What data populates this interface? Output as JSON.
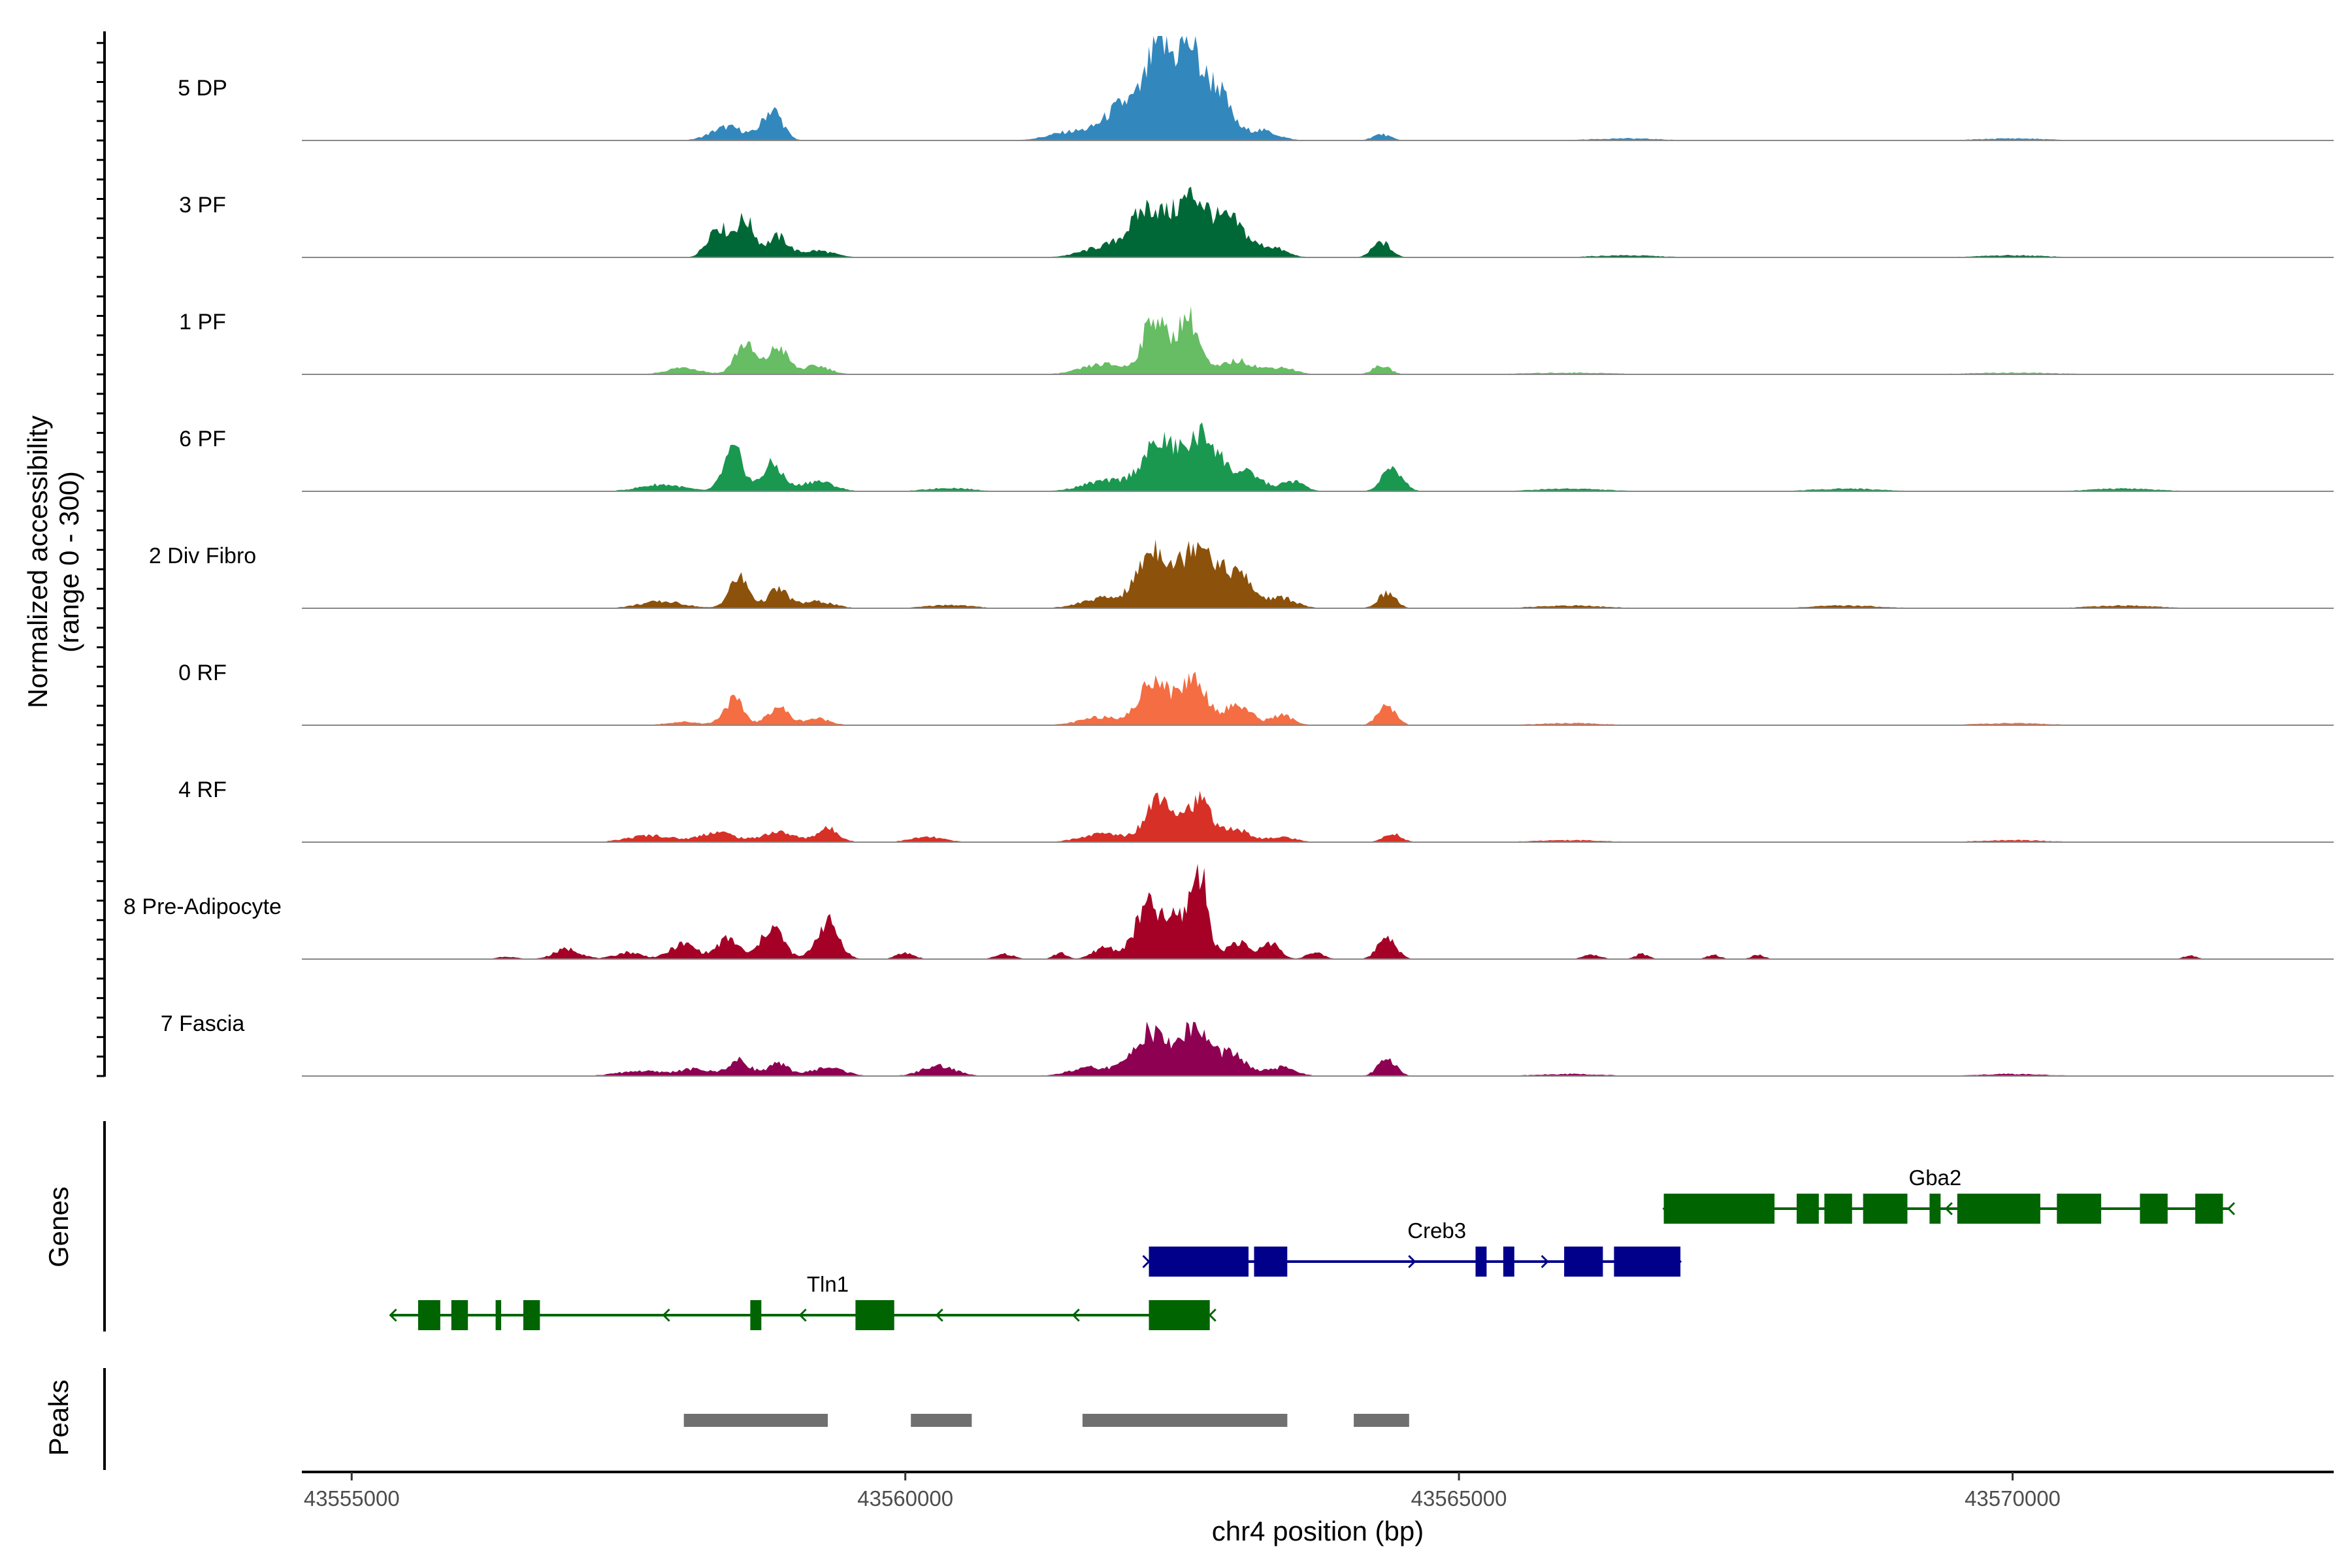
{
  "chart_data": {
    "type": "area",
    "title": "",
    "xlabel": "chr4 position (bp)",
    "ylabel_line1": "Normalized accessibility",
    "ylabel_line2": "(range 0 - 300)",
    "ylim": [
      0,
      300
    ],
    "xlim": [
      43554550,
      43572900
    ],
    "xticks": [
      {
        "value": 43555000,
        "label": "43555000"
      },
      {
        "value": 43560000,
        "label": "43560000"
      },
      {
        "value": 43565000,
        "label": "43565000"
      },
      {
        "value": 43570000,
        "label": "43570000"
      }
    ],
    "tracks": [
      {
        "name": "5 DP",
        "color": "#3288bd",
        "peaks": [
          [
            43555400,
            6,
            60
          ],
          [
            43558400,
            40,
            150
          ],
          [
            43558800,
            90,
            90
          ],
          [
            43561500,
            25,
            200
          ],
          [
            43562000,
            110,
            180
          ],
          [
            43562300,
            250,
            110
          ],
          [
            43562550,
            260,
            100
          ],
          [
            43562800,
            160,
            120
          ],
          [
            43563200,
            30,
            150
          ],
          [
            43564300,
            18,
            80
          ],
          [
            43566500,
            6,
            300
          ],
          [
            43570000,
            6,
            300
          ]
        ]
      },
      {
        "name": "3 PF",
        "color": "#006837",
        "peaks": [
          [
            43558300,
            90,
            90
          ],
          [
            43558550,
            110,
            90
          ],
          [
            43558850,
            60,
            90
          ],
          [
            43559200,
            20,
            150
          ],
          [
            43561800,
            30,
            200
          ],
          [
            43562200,
            140,
            160
          ],
          [
            43562600,
            175,
            150
          ],
          [
            43562950,
            100,
            130
          ],
          [
            43563300,
            30,
            130
          ],
          [
            43564300,
            45,
            80
          ],
          [
            43566500,
            6,
            300
          ],
          [
            43570000,
            6,
            300
          ]
        ]
      },
      {
        "name": "1 PF",
        "color": "#66bd63",
        "peaks": [
          [
            43558000,
            20,
            150
          ],
          [
            43558550,
            90,
            90
          ],
          [
            43558850,
            80,
            90
          ],
          [
            43559200,
            25,
            120
          ],
          [
            43561800,
            30,
            200
          ],
          [
            43562250,
            170,
            100
          ],
          [
            43562550,
            170,
            100
          ],
          [
            43563000,
            40,
            150
          ],
          [
            43563400,
            20,
            120
          ],
          [
            43564300,
            25,
            80
          ],
          [
            43566000,
            5,
            400
          ],
          [
            43570000,
            5,
            400
          ]
        ]
      },
      {
        "name": "6 PF",
        "color": "#1a9850",
        "peaks": [
          [
            43557800,
            20,
            200
          ],
          [
            43558450,
            120,
            90
          ],
          [
            43558800,
            80,
            90
          ],
          [
            43559200,
            30,
            150
          ],
          [
            43560400,
            10,
            200
          ],
          [
            43561800,
            30,
            200
          ],
          [
            43562300,
            140,
            160
          ],
          [
            43562700,
            160,
            150
          ],
          [
            43563100,
            50,
            130
          ],
          [
            43563500,
            30,
            100
          ],
          [
            43564400,
            70,
            90
          ],
          [
            43566000,
            8,
            300
          ],
          [
            43568500,
            8,
            300
          ],
          [
            43571000,
            8,
            300
          ]
        ]
      },
      {
        "name": "2 Div Fibro",
        "color": "#8c510a",
        "peaks": [
          [
            43557800,
            20,
            200
          ],
          [
            43558500,
            90,
            90
          ],
          [
            43558850,
            55,
            90
          ],
          [
            43559200,
            20,
            150
          ],
          [
            43560400,
            10,
            200
          ],
          [
            43561800,
            30,
            200
          ],
          [
            43562250,
            175,
            140
          ],
          [
            43562650,
            200,
            140
          ],
          [
            43563000,
            100,
            130
          ],
          [
            43563400,
            30,
            130
          ],
          [
            43564350,
            45,
            80
          ],
          [
            43566000,
            8,
            300
          ],
          [
            43568500,
            8,
            300
          ],
          [
            43571000,
            8,
            300
          ]
        ]
      },
      {
        "name": "0 RF",
        "color": "#f46d43",
        "peaks": [
          [
            43558000,
            10,
            150
          ],
          [
            43558450,
            75,
            90
          ],
          [
            43558850,
            55,
            90
          ],
          [
            43559200,
            20,
            120
          ],
          [
            43561800,
            25,
            200
          ],
          [
            43562250,
            140,
            120
          ],
          [
            43562600,
            140,
            120
          ],
          [
            43563000,
            60,
            120
          ],
          [
            43563400,
            30,
            100
          ],
          [
            43564350,
            60,
            80
          ],
          [
            43566000,
            6,
            300
          ],
          [
            43570000,
            6,
            300
          ]
        ]
      },
      {
        "name": "4 RF",
        "color": "#d73027",
        "peaks": [
          [
            43557700,
            20,
            200
          ],
          [
            43558300,
            30,
            150
          ],
          [
            43558850,
            30,
            150
          ],
          [
            43559300,
            40,
            100
          ],
          [
            43560200,
            15,
            150
          ],
          [
            43561800,
            25,
            200
          ],
          [
            43562300,
            140,
            120
          ],
          [
            43562650,
            120,
            120
          ],
          [
            43563000,
            35,
            120
          ],
          [
            43563400,
            15,
            120
          ],
          [
            43564400,
            25,
            80
          ],
          [
            43566000,
            6,
            300
          ],
          [
            43570000,
            6,
            300
          ]
        ]
      },
      {
        "name": "8 Pre-Adipocyte",
        "color": "#a50026",
        "peaks": [
          [
            43556400,
            8,
            80
          ],
          [
            43556950,
            30,
            120
          ],
          [
            43557500,
            20,
            120
          ],
          [
            43558000,
            45,
            120
          ],
          [
            43558400,
            60,
            100
          ],
          [
            43558800,
            95,
            100
          ],
          [
            43559300,
            110,
            100
          ],
          [
            43560000,
            18,
            80
          ],
          [
            43560900,
            15,
            80
          ],
          [
            43561400,
            18,
            60
          ],
          [
            43561800,
            35,
            100
          ],
          [
            43562200,
            160,
            120
          ],
          [
            43562450,
            100,
            80
          ],
          [
            43562650,
            260,
            80
          ],
          [
            43563000,
            50,
            100
          ],
          [
            43563300,
            50,
            80
          ],
          [
            43563700,
            18,
            80
          ],
          [
            43564350,
            70,
            80
          ],
          [
            43566200,
            12,
            80
          ],
          [
            43566650,
            15,
            60
          ],
          [
            43567300,
            12,
            60
          ],
          [
            43567700,
            12,
            60
          ],
          [
            43571600,
            10,
            60
          ]
        ]
      },
      {
        "name": "7 Fascia",
        "color": "#8e0152",
        "peaks": [
          [
            43557600,
            15,
            200
          ],
          [
            43558100,
            20,
            150
          ],
          [
            43558500,
            45,
            100
          ],
          [
            43558850,
            35,
            100
          ],
          [
            43559300,
            25,
            150
          ],
          [
            43560300,
            30,
            150
          ],
          [
            43561700,
            25,
            200
          ],
          [
            43562200,
            130,
            140
          ],
          [
            43562600,
            140,
            140
          ],
          [
            43562950,
            60,
            130
          ],
          [
            43563400,
            25,
            130
          ],
          [
            43564350,
            55,
            80
          ],
          [
            43566000,
            6,
            300
          ],
          [
            43570000,
            6,
            300
          ]
        ]
      }
    ],
    "genes_panel_title": "Genes",
    "genes": [
      {
        "name": "Gba2",
        "strand": "-",
        "row": 0,
        "start": 43566850,
        "end": 43571950,
        "color": "#006400",
        "exons": [
          [
            43566850,
            43567850
          ],
          [
            43568050,
            43568250
          ],
          [
            43568300,
            43568550
          ],
          [
            43568650,
            43569050
          ],
          [
            43569250,
            43569350
          ],
          [
            43569500,
            43570250
          ],
          [
            43570400,
            43570800
          ],
          [
            43571150,
            43571400
          ],
          [
            43571650,
            43571900
          ]
        ]
      },
      {
        "name": "Creb3",
        "strand": "+",
        "row": 1,
        "start": 43562200,
        "end": 43567000,
        "color": "#00008b",
        "exons": [
          [
            43562200,
            43563100
          ],
          [
            43563150,
            43563450
          ],
          [
            43565150,
            43565250
          ],
          [
            43565400,
            43565500
          ],
          [
            43565950,
            43566300
          ],
          [
            43566400,
            43567000
          ]
        ]
      },
      {
        "name": "Tln1",
        "strand": "-",
        "row": 2,
        "start": 43555350,
        "end": 43562750,
        "color": "#006400",
        "exons": [
          [
            43555600,
            43555800
          ],
          [
            43555900,
            43556050
          ],
          [
            43556300,
            43556350
          ],
          [
            43556550,
            43556700
          ],
          [
            43558600,
            43558700
          ],
          [
            43559550,
            43559900
          ],
          [
            43562200,
            43562750
          ]
        ]
      }
    ],
    "peaks_panel_title": "Peaks",
    "peak_regions": [
      [
        43558000,
        43559300
      ],
      [
        43560050,
        43560600
      ],
      [
        43561600,
        43563450
      ],
      [
        43564050,
        43564550
      ]
    ],
    "peak_color": "#707070"
  }
}
